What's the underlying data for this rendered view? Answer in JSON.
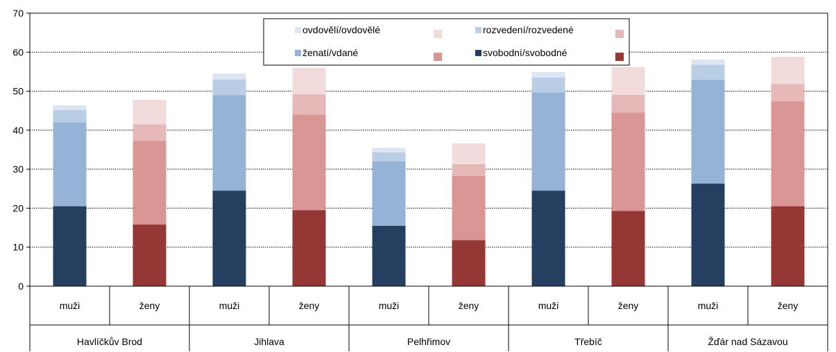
{
  "chart_data": {
    "type": "bar",
    "stacked": true,
    "ylim": [
      0,
      70
    ],
    "y_ticks": [
      0,
      10,
      20,
      30,
      40,
      50,
      60,
      70
    ],
    "grid": "horizontal-dotted",
    "legend_position": "top-center",
    "groups": [
      "Havlíčkův Brod",
      "Jihlava",
      "Pelhřimov",
      "Třebíč",
      "Žďár nad Sázavou"
    ],
    "categories": [
      "muži",
      "ženy",
      "muži",
      "ženy",
      "muži",
      "ženy",
      "muži",
      "ženy",
      "muži",
      "ženy"
    ],
    "series": [
      {
        "key": "svobodni",
        "values": [
          20.5,
          15.8,
          24.5,
          19.5,
          15.5,
          11.8,
          24.5,
          19.3,
          26.3,
          20.5
        ],
        "color_men": "#243f60",
        "color_women": "#953735"
      },
      {
        "key": "zenati",
        "values": [
          21.5,
          21.5,
          24.5,
          24.5,
          16.5,
          16.5,
          25.2,
          25.2,
          26.7,
          26.9
        ],
        "color_men": "#95b3d7",
        "color_women": "#d99694"
      },
      {
        "key": "rozvedeni",
        "values": [
          3.2,
          4.2,
          4.0,
          5.2,
          2.3,
          3.0,
          3.8,
          4.6,
          3.8,
          4.4
        ],
        "color_men": "#b9cde5",
        "color_women": "#e6b9b8"
      },
      {
        "key": "ovdoveli",
        "values": [
          1.2,
          6.3,
          1.5,
          6.8,
          1.2,
          5.3,
          1.4,
          7.1,
          1.3,
          7.0
        ],
        "color_men": "#dce6f2",
        "color_women": "#f2dcdb"
      }
    ],
    "legend": [
      {
        "label": "ovdovělí/ovdovělé",
        "color_men": "#dce6f2",
        "color_women": "#f2dcdb"
      },
      {
        "label": "rozvedení/rozvedené",
        "color_men": "#b9cde5",
        "color_women": "#e6b9b8"
      },
      {
        "label": "ženatí/vdané",
        "color_men": "#95b3d7",
        "color_women": "#d99694"
      },
      {
        "label": "svobodní/svobodné",
        "color_men": "#243f60",
        "color_women": "#953735"
      }
    ]
  }
}
